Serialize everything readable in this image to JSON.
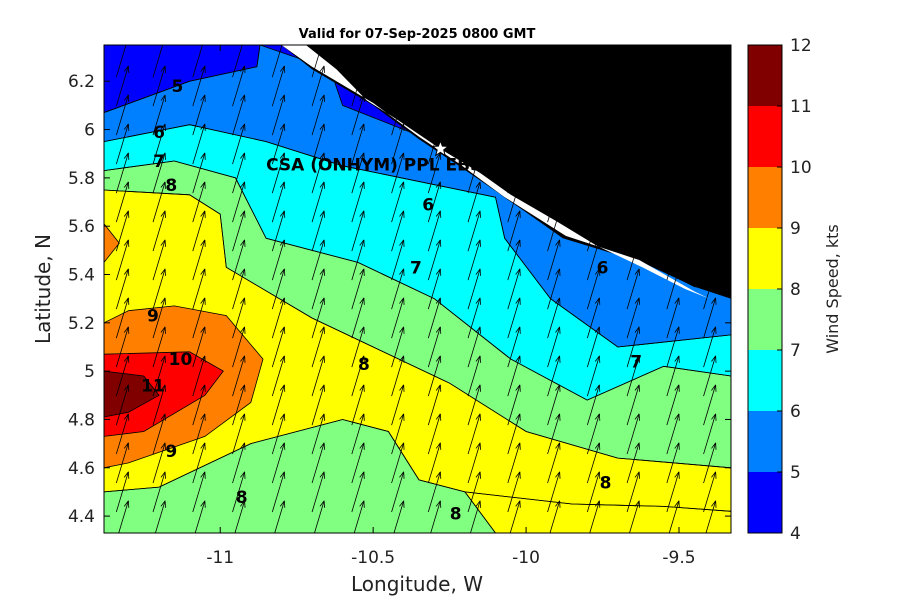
{
  "chart_data": {
    "type": "heatmap",
    "title": "Valid for 07-Sep-2025 0800 GMT",
    "xlabel": "Longitude, W",
    "ylabel": "Latitude, N",
    "colorbar_label": "Wind Speed, kts",
    "xlim": [
      -11.38,
      -9.33
    ],
    "ylim": [
      4.33,
      6.35
    ],
    "x_ticks": [
      -11,
      -10.5,
      -10,
      -9.5
    ],
    "x_tick_labels": [
      "-11",
      "-10.5",
      "-10",
      "-9.5"
    ],
    "y_ticks": [
      4.4,
      4.6,
      4.8,
      5.0,
      5.2,
      5.4,
      5.6,
      5.8,
      6.0,
      6.2
    ],
    "y_tick_labels": [
      "4.4",
      "4.6",
      "4.8",
      "5",
      "5.2",
      "5.4",
      "5.6",
      "5.8",
      "6",
      "6.2"
    ],
    "colorbar_ticks": [
      4,
      5,
      6,
      7,
      8,
      9,
      10,
      11,
      12
    ],
    "colorbar_colors": [
      "#0000ff",
      "#0080ff",
      "#00ffff",
      "#80ff80",
      "#ffff00",
      "#ff8000",
      "#ff0000",
      "#800000"
    ],
    "land_color": "#000000",
    "contour_levels": [
      5,
      6,
      7,
      8,
      9,
      10,
      11
    ],
    "filled_regions": [
      {
        "level": 4,
        "color": "#0000ff",
        "polygon": [
          [
            -11.38,
            6.35
          ],
          [
            -10.87,
            6.35
          ],
          [
            -10.88,
            6.26
          ],
          [
            -11.1,
            6.2
          ],
          [
            -11.38,
            6.07
          ]
        ]
      },
      {
        "level": 5,
        "color": "#0080ff",
        "polygon": [
          [
            -10.87,
            6.35
          ],
          [
            -10.64,
            6.25
          ],
          [
            -10.6,
            6.1
          ],
          [
            -10.3,
            5.95
          ],
          [
            -10.07,
            5.72
          ],
          [
            -9.87,
            5.55
          ],
          [
            -9.68,
            5.5
          ],
          [
            -9.45,
            5.35
          ],
          [
            -9.33,
            5.33
          ],
          [
            -9.33,
            5.15
          ],
          [
            -9.7,
            5.1
          ],
          [
            -9.92,
            5.3
          ],
          [
            -10.07,
            5.55
          ],
          [
            -10.1,
            5.72
          ],
          [
            -10.6,
            5.85
          ],
          [
            -10.85,
            5.95
          ],
          [
            -11.1,
            6.02
          ],
          [
            -11.38,
            5.95
          ],
          [
            -11.38,
            6.07
          ],
          [
            -11.1,
            6.2
          ],
          [
            -10.88,
            6.26
          ]
        ]
      },
      {
        "level": 6,
        "color": "#00ffff",
        "polygon": [
          [
            -11.38,
            5.95
          ],
          [
            -11.1,
            6.02
          ],
          [
            -10.85,
            5.95
          ],
          [
            -10.6,
            5.85
          ],
          [
            -10.1,
            5.72
          ],
          [
            -10.07,
            5.55
          ],
          [
            -9.92,
            5.3
          ],
          [
            -9.7,
            5.1
          ],
          [
            -9.33,
            5.15
          ],
          [
            -9.33,
            4.98
          ],
          [
            -9.55,
            5.02
          ],
          [
            -9.8,
            4.88
          ],
          [
            -10.05,
            5.05
          ],
          [
            -10.3,
            5.3
          ],
          [
            -10.55,
            5.45
          ],
          [
            -10.85,
            5.55
          ],
          [
            -10.95,
            5.8
          ],
          [
            -11.15,
            5.87
          ],
          [
            -11.38,
            5.83
          ]
        ]
      },
      {
        "level": 7,
        "color": "#80ff80",
        "polygon": [
          [
            -11.38,
            5.83
          ],
          [
            -11.15,
            5.87
          ],
          [
            -10.95,
            5.8
          ],
          [
            -10.85,
            5.55
          ],
          [
            -10.55,
            5.45
          ],
          [
            -10.3,
            5.3
          ],
          [
            -10.05,
            5.05
          ],
          [
            -9.8,
            4.88
          ],
          [
            -9.55,
            5.02
          ],
          [
            -9.33,
            4.98
          ],
          [
            -9.33,
            4.6
          ],
          [
            -9.7,
            4.64
          ],
          [
            -10.0,
            4.75
          ],
          [
            -10.25,
            4.95
          ],
          [
            -10.5,
            5.1
          ],
          [
            -10.7,
            5.22
          ],
          [
            -10.98,
            5.43
          ],
          [
            -11.0,
            5.65
          ],
          [
            -11.1,
            5.73
          ],
          [
            -11.38,
            5.75
          ]
        ]
      },
      {
        "level": 8,
        "color": "#ffff00",
        "polygon": [
          [
            -11.38,
            5.75
          ],
          [
            -11.1,
            5.73
          ],
          [
            -11.0,
            5.65
          ],
          [
            -10.98,
            5.43
          ],
          [
            -10.7,
            5.22
          ],
          [
            -10.5,
            5.1
          ],
          [
            -10.25,
            4.95
          ],
          [
            -10.0,
            4.75
          ],
          [
            -9.7,
            4.64
          ],
          [
            -9.33,
            4.6
          ],
          [
            -9.33,
            4.42
          ],
          [
            -9.55,
            4.44
          ],
          [
            -9.85,
            4.45
          ],
          [
            -10.2,
            4.5
          ],
          [
            -10.35,
            4.55
          ],
          [
            -10.45,
            4.75
          ],
          [
            -10.6,
            4.8
          ],
          [
            -10.9,
            4.7
          ],
          [
            -11.2,
            4.52
          ],
          [
            -11.38,
            4.5
          ]
        ]
      },
      {
        "level": 7,
        "color": "#80ff80",
        "polygon": [
          [
            -11.38,
            4.5
          ],
          [
            -11.2,
            4.52
          ],
          [
            -10.9,
            4.7
          ],
          [
            -10.6,
            4.8
          ],
          [
            -10.45,
            4.75
          ],
          [
            -10.35,
            4.55
          ],
          [
            -10.2,
            4.5
          ],
          [
            -10.1,
            4.33
          ],
          [
            -11.38,
            4.33
          ]
        ]
      },
      {
        "level": 8,
        "color": "#ffff00",
        "polygon": [
          [
            -9.33,
            4.42
          ],
          [
            -9.55,
            4.44
          ],
          [
            -9.85,
            4.45
          ],
          [
            -10.2,
            4.5
          ],
          [
            -10.1,
            4.33
          ],
          [
            -9.33,
            4.33
          ]
        ]
      },
      {
        "level": 9,
        "color": "#ff8000",
        "polygon": [
          [
            -11.38,
            5.2
          ],
          [
            -11.3,
            5.25
          ],
          [
            -11.15,
            5.27
          ],
          [
            -10.98,
            5.23
          ],
          [
            -10.86,
            5.05
          ],
          [
            -10.9,
            4.87
          ],
          [
            -11.05,
            4.73
          ],
          [
            -11.3,
            4.62
          ],
          [
            -11.38,
            4.6
          ]
        ]
      },
      {
        "level": 9,
        "color": "#ff8000",
        "polygon": [
          [
            -11.38,
            5.61
          ],
          [
            -11.33,
            5.53
          ],
          [
            -11.38,
            5.45
          ]
        ]
      },
      {
        "level": 10,
        "color": "#ff0000",
        "polygon": [
          [
            -11.38,
            5.07
          ],
          [
            -11.1,
            5.08
          ],
          [
            -10.99,
            5.0
          ],
          [
            -11.05,
            4.9
          ],
          [
            -11.25,
            4.75
          ],
          [
            -11.38,
            4.73
          ]
        ]
      },
      {
        "level": 11,
        "color": "#800000",
        "polygon": [
          [
            -11.38,
            5.0
          ],
          [
            -11.25,
            4.98
          ],
          [
            -11.2,
            4.9
          ],
          [
            -11.3,
            4.83
          ],
          [
            -11.38,
            4.81
          ]
        ]
      }
    ],
    "land_polygons": [
      {
        "polygon": [
          [
            -10.8,
            6.35
          ],
          [
            -9.33,
            6.35
          ],
          [
            -9.33,
            5.3
          ],
          [
            -9.45,
            5.35
          ],
          [
            -9.62,
            5.45
          ],
          [
            -9.88,
            5.55
          ],
          [
            -10.07,
            5.72
          ],
          [
            -10.22,
            5.85
          ],
          [
            -10.35,
            5.96
          ],
          [
            -10.5,
            6.1
          ],
          [
            -10.7,
            6.25
          ]
        ]
      },
      {
        "polygon": [
          [
            -10.72,
            6.35
          ],
          [
            -10.62,
            6.25
          ],
          [
            -10.52,
            6.12
          ],
          [
            -10.42,
            6.04
          ],
          [
            -10.28,
            5.92
          ],
          [
            -10.15,
            5.82
          ],
          [
            -10.05,
            5.73
          ],
          [
            -9.9,
            5.62
          ],
          [
            -9.77,
            5.52
          ],
          [
            -9.62,
            5.43
          ],
          [
            -9.48,
            5.34
          ],
          [
            -9.4,
            5.3
          ],
          [
            -9.45,
            5.33
          ],
          [
            -9.63,
            5.46
          ],
          [
            -9.87,
            5.56
          ],
          [
            -10.07,
            5.72
          ],
          [
            -10.22,
            5.86
          ],
          [
            -10.35,
            5.97
          ],
          [
            -10.5,
            6.11
          ],
          [
            -10.7,
            6.26
          ],
          [
            -10.8,
            6.35
          ]
        ],
        "color": "#ffffff"
      }
    ],
    "contour_labels": [
      {
        "text": "5",
        "x": -11.14,
        "y": 6.18
      },
      {
        "text": "6",
        "x": -11.2,
        "y": 5.99
      },
      {
        "text": "7",
        "x": -11.2,
        "y": 5.87
      },
      {
        "text": "8",
        "x": -11.16,
        "y": 5.77
      },
      {
        "text": "6",
        "x": -10.32,
        "y": 5.69
      },
      {
        "text": "7",
        "x": -10.36,
        "y": 5.43
      },
      {
        "text": "6",
        "x": -9.75,
        "y": 5.43
      },
      {
        "text": "9",
        "x": -11.22,
        "y": 5.23
      },
      {
        "text": "8",
        "x": -10.53,
        "y": 5.03
      },
      {
        "text": "10",
        "x": -11.13,
        "y": 5.05
      },
      {
        "text": "7",
        "x": -9.64,
        "y": 5.04
      },
      {
        "text": "11",
        "x": -11.22,
        "y": 4.94
      },
      {
        "text": "9",
        "x": -11.16,
        "y": 4.67
      },
      {
        "text": "8",
        "x": -10.93,
        "y": 4.48
      },
      {
        "text": "8",
        "x": -10.23,
        "y": 4.41
      },
      {
        "text": "8",
        "x": -9.74,
        "y": 4.54
      }
    ],
    "wind_vectors": {
      "x": [
        -11.32,
        -11.2,
        -11.07,
        -10.94,
        -10.81,
        -10.68,
        -10.55,
        -10.42,
        -10.3,
        -10.17,
        -10.04,
        -9.91,
        -9.78,
        -9.65,
        -9.52,
        -9.4
      ],
      "y": [
        6.3,
        6.18,
        6.06,
        5.94,
        5.82,
        5.7,
        5.58,
        5.46,
        5.34,
        5.22,
        5.1,
        4.98,
        4.86,
        4.74,
        4.62,
        4.5,
        4.38
      ],
      "u_east": 0.3,
      "v_north": 1.0
    },
    "annotations": [
      {
        "text": "CSA (ONHYM) PPL EBS",
        "x": -10.85,
        "y": 5.83,
        "marker": "star",
        "marker_x": -10.28,
        "marker_y": 5.92
      }
    ]
  }
}
